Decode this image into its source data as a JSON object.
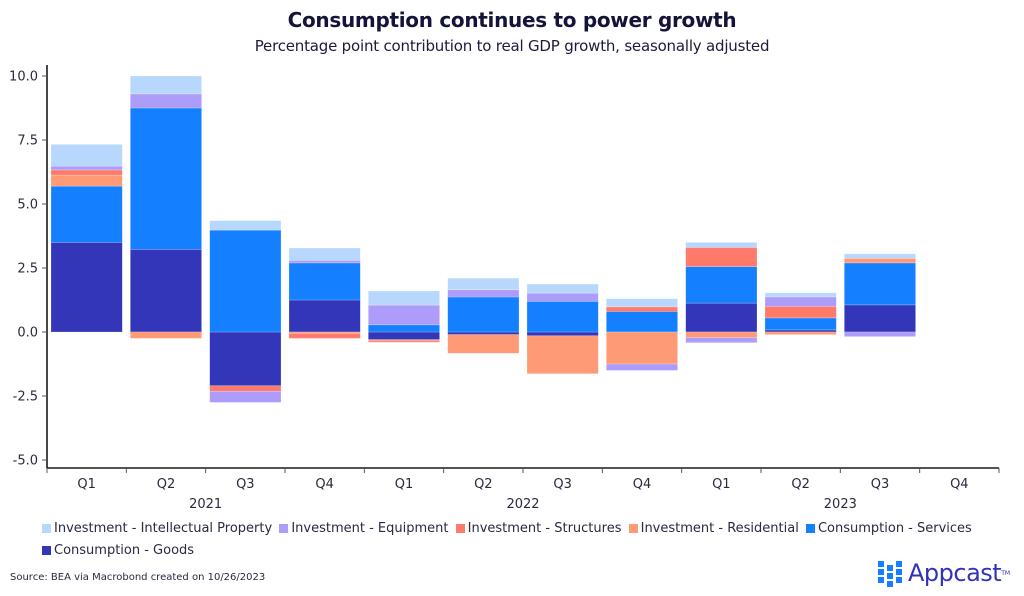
{
  "header": {
    "title": "Consumption continues to power growth",
    "subtitle": "Percentage point contribution to real GDP growth, seasonally adjusted"
  },
  "chart_data": {
    "type": "bar",
    "stacked": true,
    "title": "Consumption continues to power growth",
    "subtitle": "Percentage point contribution to real GDP growth, seasonally adjusted",
    "xlabel": "",
    "ylabel": "",
    "ylim": [
      -5.0,
      10.0
    ],
    "yticks": [
      10.0,
      7.5,
      5.0,
      2.5,
      0.0,
      -2.5,
      -5.0
    ],
    "ytick_labels": [
      "10.0",
      "7.5",
      "5.0",
      "2.5",
      "0.0",
      "-2.5",
      "-5.0"
    ],
    "categories": [
      "Q1",
      "Q2",
      "Q3",
      "Q4",
      "Q1",
      "Q2",
      "Q3",
      "Q4",
      "Q1",
      "Q2",
      "Q3",
      "Q4"
    ],
    "year_groups": [
      {
        "label": "2021",
        "quarters": [
          "Q1",
          "Q2",
          "Q3",
          "Q4"
        ]
      },
      {
        "label": "2022",
        "quarters": [
          "Q1",
          "Q2",
          "Q3",
          "Q4"
        ]
      },
      {
        "label": "2023",
        "quarters": [
          "Q1",
          "Q2",
          "Q3",
          "Q4"
        ]
      }
    ],
    "grid": false,
    "legend_position": "bottom",
    "series": [
      {
        "name": "Consumption - Goods",
        "color": "#3336b8",
        "values": [
          3.5,
          3.23,
          -2.1,
          1.25,
          -0.3,
          -0.1,
          -0.15,
          0.0,
          1.13,
          0.08,
          1.06,
          null
        ]
      },
      {
        "name": "Consumption - Services",
        "color": "#1480ff",
        "values": [
          2.2,
          5.52,
          3.98,
          1.45,
          0.28,
          1.37,
          1.2,
          0.8,
          1.42,
          0.47,
          1.64,
          null
        ]
      },
      {
        "name": "Investment - Residential",
        "color": "#ff9a76",
        "values": [
          0.43,
          -0.25,
          0.0,
          -0.05,
          -0.05,
          -0.73,
          -1.48,
          -1.25,
          -0.22,
          -0.1,
          0.18,
          null
        ]
      },
      {
        "name": "Investment - Structures",
        "color": "#ff7a6a",
        "values": [
          0.2,
          0.0,
          -0.22,
          -0.2,
          -0.05,
          0.0,
          0.0,
          0.18,
          0.75,
          0.45,
          0.0,
          null
        ]
      },
      {
        "name": "Investment - Equipment",
        "color": "#ae9cfa",
        "values": [
          0.15,
          0.55,
          -0.43,
          0.1,
          0.77,
          0.28,
          0.32,
          -0.25,
          -0.2,
          0.37,
          -0.18,
          null
        ]
      },
      {
        "name": "Investment - Intellectual Property",
        "color": "#b7d8fc",
        "values": [
          0.85,
          0.7,
          0.37,
          0.48,
          0.55,
          0.45,
          0.35,
          0.32,
          0.2,
          0.16,
          0.17,
          null
        ]
      }
    ]
  },
  "legend": [
    {
      "label": "Investment - Intellectual Property",
      "color": "#b7d8fc"
    },
    {
      "label": "Investment - Equipment",
      "color": "#ae9cfa"
    },
    {
      "label": "Investment - Structures",
      "color": "#ff7a6a"
    },
    {
      "label": "Investment - Residential",
      "color": "#ff9a76"
    },
    {
      "label": "Consumption - Services",
      "color": "#1480ff"
    },
    {
      "label": "Consumption - Goods",
      "color": "#3336b8"
    }
  ],
  "footer": {
    "source": "Source: BEA via Macrobond created on 10/26/2023",
    "logo_text": "Appcast",
    "logo_mark": "TM"
  }
}
